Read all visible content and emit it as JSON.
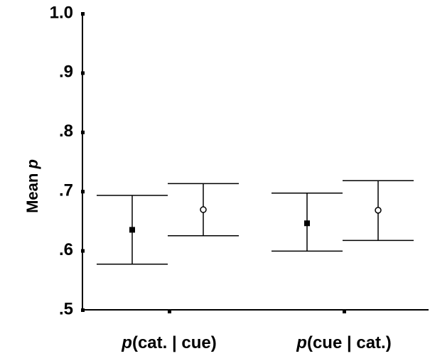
{
  "chart_data": {
    "type": "scatter",
    "title": "",
    "ylabel": {
      "main": "Mean ",
      "italic": "p"
    },
    "ylim": [
      0.5,
      1.0
    ],
    "yticks": [
      {
        "value": 1.0,
        "label": "1.0"
      },
      {
        "value": 0.9,
        "label": ".9"
      },
      {
        "value": 0.8,
        "label": ".8"
      },
      {
        "value": 0.7,
        "label": ".7"
      },
      {
        "value": 0.6,
        "label": ".6"
      },
      {
        "value": 0.5,
        "label": ".5"
      }
    ],
    "categories": [
      {
        "italic": "p",
        "text": "(cat. | cue)"
      },
      {
        "italic": "p",
        "text": "(cue | cat.)"
      }
    ],
    "series": [
      {
        "marker": "square-filled",
        "values": [
          0.635,
          0.646
        ],
        "lower": [
          0.577,
          0.599
        ],
        "upper": [
          0.693,
          0.697
        ]
      },
      {
        "marker": "circle-open",
        "values": [
          0.669,
          0.668
        ],
        "lower": [
          0.625,
          0.617
        ],
        "upper": [
          0.713,
          0.718
        ]
      }
    ],
    "grid": false,
    "legend": "none",
    "colors": {
      "ink": "#000000",
      "background": "#ffffff"
    }
  }
}
